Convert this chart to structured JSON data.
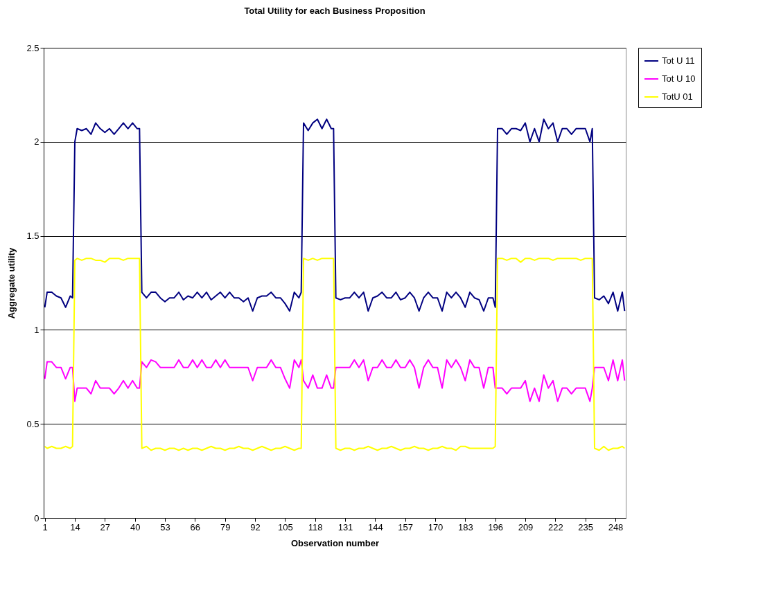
{
  "chart_data": {
    "type": "line",
    "title": "Total Utility for each Business Proposition",
    "xlabel": "Observation number",
    "ylabel": "Aggregate utility",
    "x": [
      1,
      2,
      4,
      6,
      8,
      10,
      12,
      13,
      14,
      15,
      17,
      19,
      21,
      23,
      25,
      27,
      29,
      31,
      33,
      35,
      37,
      39,
      41,
      42,
      43,
      45,
      47,
      49,
      51,
      53,
      55,
      57,
      59,
      61,
      63,
      65,
      67,
      69,
      71,
      73,
      75,
      77,
      79,
      81,
      83,
      85,
      87,
      89,
      91,
      93,
      95,
      97,
      99,
      101,
      103,
      105,
      107,
      109,
      111,
      112,
      113,
      115,
      117,
      119,
      121,
      123,
      125,
      126,
      127,
      129,
      131,
      133,
      135,
      137,
      139,
      141,
      143,
      145,
      147,
      149,
      151,
      153,
      155,
      157,
      159,
      161,
      163,
      165,
      167,
      169,
      171,
      173,
      175,
      177,
      179,
      181,
      183,
      185,
      187,
      189,
      191,
      193,
      195,
      196,
      197,
      199,
      201,
      203,
      205,
      207,
      209,
      211,
      213,
      215,
      217,
      219,
      221,
      223,
      225,
      227,
      229,
      231,
      233,
      235,
      237,
      238,
      239,
      241,
      243,
      245,
      247,
      249,
      251,
      252
    ],
    "series": [
      {
        "name": "Tot U 11",
        "color": "#000080",
        "values": [
          1.12,
          1.2,
          1.2,
          1.18,
          1.17,
          1.12,
          1.18,
          1.17,
          2.0,
          2.07,
          2.06,
          2.07,
          2.04,
          2.1,
          2.07,
          2.05,
          2.07,
          2.04,
          2.07,
          2.1,
          2.07,
          2.1,
          2.07,
          2.07,
          1.2,
          1.17,
          1.2,
          1.2,
          1.17,
          1.15,
          1.17,
          1.17,
          1.2,
          1.16,
          1.18,
          1.17,
          1.2,
          1.17,
          1.2,
          1.16,
          1.18,
          1.2,
          1.17,
          1.2,
          1.17,
          1.17,
          1.15,
          1.17,
          1.1,
          1.17,
          1.18,
          1.18,
          1.2,
          1.17,
          1.17,
          1.14,
          1.1,
          1.2,
          1.17,
          1.2,
          2.1,
          2.06,
          2.1,
          2.12,
          2.07,
          2.12,
          2.07,
          2.07,
          1.17,
          1.16,
          1.17,
          1.17,
          1.2,
          1.17,
          1.2,
          1.1,
          1.17,
          1.18,
          1.2,
          1.17,
          1.17,
          1.2,
          1.16,
          1.17,
          1.2,
          1.17,
          1.1,
          1.17,
          1.2,
          1.17,
          1.17,
          1.1,
          1.2,
          1.17,
          1.2,
          1.17,
          1.12,
          1.2,
          1.17,
          1.16,
          1.1,
          1.17,
          1.17,
          1.12,
          2.07,
          2.07,
          2.04,
          2.07,
          2.07,
          2.06,
          2.1,
          2.0,
          2.07,
          2.0,
          2.12,
          2.07,
          2.1,
          2.0,
          2.07,
          2.07,
          2.04,
          2.07,
          2.07,
          2.07,
          2.0,
          2.07,
          1.17,
          1.16,
          1.18,
          1.14,
          1.2,
          1.1,
          1.2,
          1.1
        ]
      },
      {
        "name": "Tot U 10",
        "color": "#ff00ff",
        "values": [
          0.74,
          0.83,
          0.83,
          0.8,
          0.8,
          0.74,
          0.8,
          0.8,
          0.62,
          0.69,
          0.69,
          0.69,
          0.66,
          0.73,
          0.69,
          0.69,
          0.69,
          0.66,
          0.69,
          0.73,
          0.69,
          0.73,
          0.69,
          0.69,
          0.83,
          0.8,
          0.84,
          0.83,
          0.8,
          0.8,
          0.8,
          0.8,
          0.84,
          0.8,
          0.8,
          0.84,
          0.8,
          0.84,
          0.8,
          0.8,
          0.84,
          0.8,
          0.84,
          0.8,
          0.8,
          0.8,
          0.8,
          0.8,
          0.73,
          0.8,
          0.8,
          0.8,
          0.84,
          0.8,
          0.8,
          0.74,
          0.69,
          0.84,
          0.8,
          0.84,
          0.73,
          0.69,
          0.76,
          0.69,
          0.69,
          0.76,
          0.69,
          0.69,
          0.8,
          0.8,
          0.8,
          0.8,
          0.84,
          0.8,
          0.84,
          0.73,
          0.8,
          0.8,
          0.84,
          0.8,
          0.8,
          0.84,
          0.8,
          0.8,
          0.84,
          0.8,
          0.69,
          0.8,
          0.84,
          0.8,
          0.8,
          0.69,
          0.84,
          0.8,
          0.84,
          0.8,
          0.73,
          0.84,
          0.8,
          0.8,
          0.69,
          0.8,
          0.8,
          0.69,
          0.69,
          0.69,
          0.66,
          0.69,
          0.69,
          0.69,
          0.73,
          0.62,
          0.69,
          0.62,
          0.76,
          0.69,
          0.73,
          0.62,
          0.69,
          0.69,
          0.66,
          0.69,
          0.69,
          0.69,
          0.62,
          0.69,
          0.8,
          0.8,
          0.8,
          0.73,
          0.84,
          0.73,
          0.84,
          0.73
        ]
      },
      {
        "name": "TotU 01",
        "color": "#ffff00",
        "values": [
          0.38,
          0.37,
          0.38,
          0.37,
          0.37,
          0.38,
          0.37,
          0.38,
          1.37,
          1.38,
          1.37,
          1.38,
          1.38,
          1.37,
          1.37,
          1.36,
          1.38,
          1.38,
          1.38,
          1.37,
          1.38,
          1.38,
          1.38,
          1.38,
          0.37,
          0.38,
          0.36,
          0.37,
          0.37,
          0.36,
          0.37,
          0.37,
          0.36,
          0.37,
          0.36,
          0.37,
          0.37,
          0.36,
          0.37,
          0.38,
          0.37,
          0.37,
          0.36,
          0.37,
          0.37,
          0.38,
          0.37,
          0.37,
          0.36,
          0.37,
          0.38,
          0.37,
          0.36,
          0.37,
          0.37,
          0.38,
          0.37,
          0.36,
          0.37,
          0.37,
          1.38,
          1.37,
          1.38,
          1.37,
          1.38,
          1.38,
          1.38,
          1.38,
          0.37,
          0.36,
          0.37,
          0.37,
          0.36,
          0.37,
          0.37,
          0.38,
          0.37,
          0.36,
          0.37,
          0.37,
          0.38,
          0.37,
          0.36,
          0.37,
          0.37,
          0.38,
          0.37,
          0.37,
          0.36,
          0.37,
          0.37,
          0.38,
          0.37,
          0.37,
          0.36,
          0.38,
          0.38,
          0.37,
          0.37,
          0.37,
          0.37,
          0.37,
          0.37,
          0.38,
          1.38,
          1.38,
          1.37,
          1.38,
          1.38,
          1.36,
          1.38,
          1.38,
          1.37,
          1.38,
          1.38,
          1.38,
          1.37,
          1.38,
          1.38,
          1.38,
          1.38,
          1.38,
          1.37,
          1.38,
          1.38,
          1.38,
          0.37,
          0.36,
          0.38,
          0.36,
          0.37,
          0.37,
          0.38,
          0.37
        ]
      }
    ],
    "xlim": [
      0.5,
      252.5
    ],
    "xticks": [
      1,
      14,
      27,
      40,
      53,
      66,
      79,
      92,
      105,
      118,
      131,
      144,
      157,
      170,
      183,
      196,
      209,
      222,
      235,
      248
    ],
    "ylim": [
      0,
      2.5
    ],
    "yticks": [
      0,
      0.5,
      1,
      1.5,
      2,
      2.5
    ],
    "grid": "y",
    "legend": "right"
  }
}
